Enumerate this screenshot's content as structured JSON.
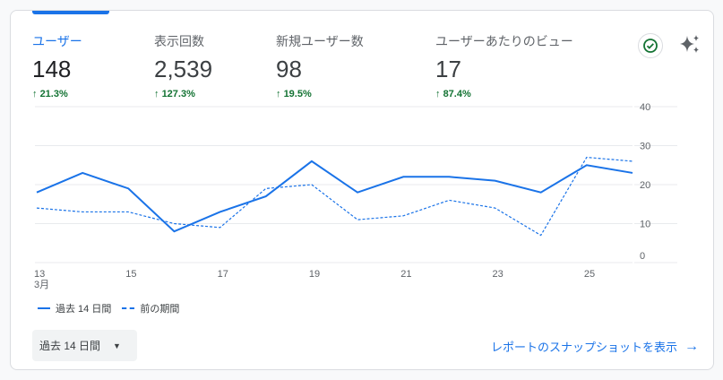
{
  "metrics": [
    {
      "label": "ユーザー",
      "value": "148",
      "change": "21.3%",
      "active": true
    },
    {
      "label": "表示回数",
      "value": "2,539",
      "change": "127.3%"
    },
    {
      "label": "新規ユーザー数",
      "value": "98",
      "change": "19.5%"
    },
    {
      "label": "ユーザーあたりのビュー",
      "value": "17",
      "change": "87.4%"
    }
  ],
  "colors": {
    "accent": "#1a73e8",
    "positive": "#137333"
  },
  "chart_data": {
    "type": "line",
    "x": [
      "13",
      "14",
      "15",
      "16",
      "17",
      "18",
      "19",
      "20",
      "21",
      "22",
      "23",
      "24",
      "25",
      "26"
    ],
    "x_tick_labels": [
      "13",
      "15",
      "17",
      "19",
      "21",
      "23",
      "25"
    ],
    "x_month_label": "3月",
    "y_ticks": [
      "0",
      "10",
      "20",
      "30",
      "40"
    ],
    "ylim": [
      0,
      40
    ],
    "grid": true,
    "series": [
      {
        "name": "過去 14 日間",
        "style": "solid",
        "values": [
          18,
          23,
          19,
          8,
          13,
          17,
          26,
          18,
          22,
          22,
          21,
          18,
          25,
          23
        ]
      },
      {
        "name": "前の期間",
        "style": "dashed",
        "values": [
          14,
          13,
          13,
          10,
          9,
          19,
          20,
          11,
          12,
          16,
          14,
          7,
          27,
          26
        ]
      }
    ],
    "legend": "bottom-left"
  },
  "date_range_button": "過去 14 日間",
  "snapshot_link": "レポートのスナップショットを表示"
}
